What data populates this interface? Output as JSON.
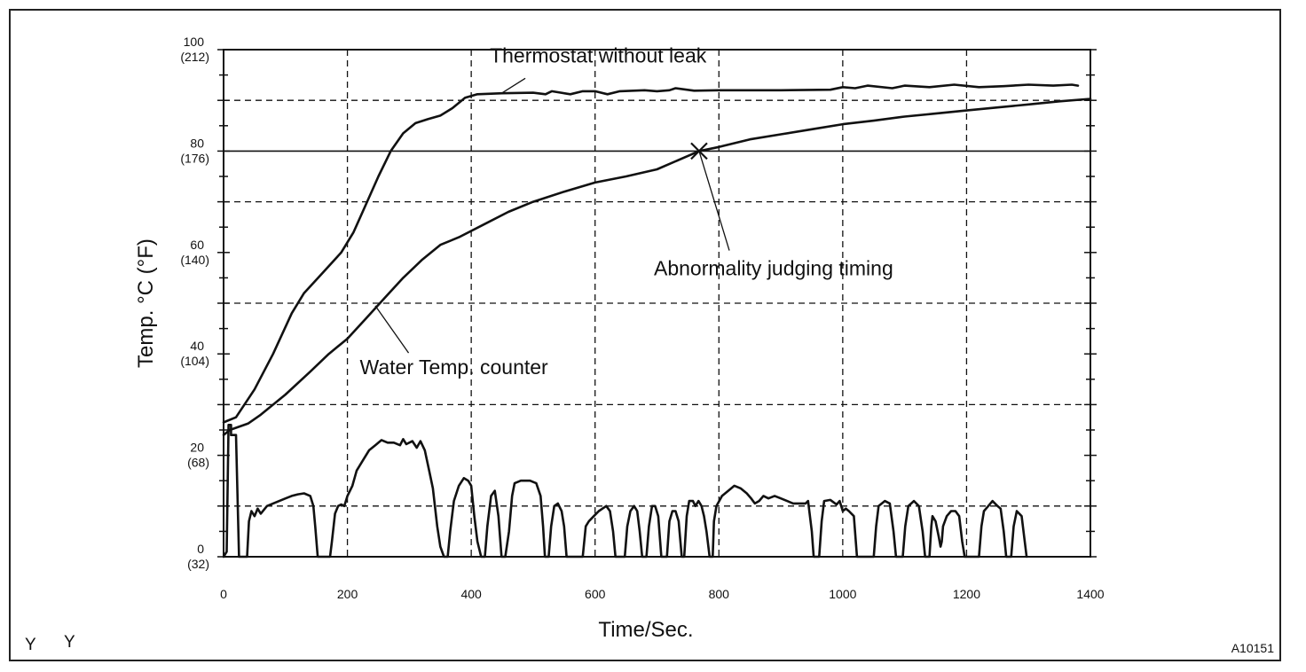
{
  "figure_id": "A10151",
  "corner_marks": [
    "Y",
    "Y"
  ],
  "colors": {
    "ink": "#111111",
    "background": "#ffffff"
  },
  "chart_data": {
    "type": "line",
    "title": "",
    "xlabel": "Time/Sec.",
    "ylabel": "Temp. °C (°F)",
    "xlim": [
      0,
      1400
    ],
    "ylim": [
      0,
      100
    ],
    "x_ticks": [
      0,
      200,
      400,
      600,
      800,
      1000,
      1200,
      1400
    ],
    "x_tick_labels": [
      "0",
      "200",
      "400",
      "600",
      "800",
      "1000",
      "1200",
      "1400"
    ],
    "y_ticks": [
      0,
      20,
      40,
      60,
      80,
      100
    ],
    "y_tick_labels": [
      {
        "c": "0",
        "f": "(32)"
      },
      {
        "c": "20",
        "f": "(68)"
      },
      {
        "c": "40",
        "f": "(104)"
      },
      {
        "c": "60",
        "f": "(140)"
      },
      {
        "c": "80",
        "f": "(176)"
      },
      {
        "c": "100",
        "f": "(212)"
      }
    ],
    "grid": "dashed",
    "reference_lines": [
      {
        "axis": "y",
        "value": 80,
        "style": "solid"
      }
    ],
    "series": [
      {
        "name": "Thermostat without leak",
        "points": [
          [
            0,
            26.5
          ],
          [
            20,
            27.5
          ],
          [
            50,
            33
          ],
          [
            80,
            40
          ],
          [
            110,
            48
          ],
          [
            130,
            52
          ],
          [
            160,
            56
          ],
          [
            190,
            60
          ],
          [
            210,
            64
          ],
          [
            230,
            69.5
          ],
          [
            250,
            75
          ],
          [
            270,
            80
          ],
          [
            290,
            83.5
          ],
          [
            310,
            85.5
          ],
          [
            330,
            86.3
          ],
          [
            350,
            87
          ],
          [
            370,
            88.5
          ],
          [
            390,
            90.5
          ],
          [
            410,
            91.2
          ],
          [
            450,
            91.4
          ],
          [
            500,
            91.5
          ],
          [
            520,
            91.2
          ],
          [
            530,
            91.8
          ],
          [
            560,
            91.2
          ],
          [
            580,
            91.8
          ],
          [
            600,
            91.8
          ],
          [
            620,
            91.2
          ],
          [
            640,
            91.8
          ],
          [
            680,
            92
          ],
          [
            700,
            91.8
          ],
          [
            720,
            92
          ],
          [
            730,
            92.4
          ],
          [
            760,
            91.9
          ],
          [
            800,
            92
          ],
          [
            900,
            92
          ],
          [
            980,
            92.1
          ],
          [
            1000,
            92.6
          ],
          [
            1020,
            92.4
          ],
          [
            1040,
            92.9
          ],
          [
            1080,
            92.4
          ],
          [
            1100,
            92.9
          ],
          [
            1140,
            92.6
          ],
          [
            1180,
            93.1
          ],
          [
            1220,
            92.6
          ],
          [
            1260,
            92.8
          ],
          [
            1300,
            93.1
          ],
          [
            1340,
            92.9
          ],
          [
            1370,
            93.1
          ],
          [
            1380,
            92.9
          ]
        ]
      },
      {
        "name": "Water Temp. counter",
        "points": [
          [
            0,
            24
          ],
          [
            10,
            25
          ],
          [
            40,
            26.3
          ],
          [
            60,
            28
          ],
          [
            100,
            32
          ],
          [
            140,
            36.5
          ],
          [
            170,
            40
          ],
          [
            200,
            43
          ],
          [
            230,
            47
          ],
          [
            260,
            51
          ],
          [
            290,
            55
          ],
          [
            320,
            58.5
          ],
          [
            350,
            61.5
          ],
          [
            380,
            63
          ],
          [
            420,
            65.5
          ],
          [
            460,
            68
          ],
          [
            500,
            70
          ],
          [
            550,
            72
          ],
          [
            600,
            73.8
          ],
          [
            650,
            75
          ],
          [
            700,
            76.4
          ],
          [
            768,
            80
          ],
          [
            800,
            80.8
          ],
          [
            850,
            82.3
          ],
          [
            900,
            83.3
          ],
          [
            950,
            84.3
          ],
          [
            1000,
            85.3
          ],
          [
            1050,
            86
          ],
          [
            1100,
            86.8
          ],
          [
            1150,
            87.4
          ],
          [
            1200,
            88
          ],
          [
            1250,
            88.6
          ],
          [
            1300,
            89.2
          ],
          [
            1350,
            89.8
          ],
          [
            1400,
            90.3
          ]
        ]
      },
      {
        "name": "",
        "points": [
          [
            0,
            0
          ],
          [
            5,
            1
          ],
          [
            8,
            26
          ],
          [
            12,
            26
          ],
          [
            12,
            24
          ],
          [
            20,
            24
          ],
          [
            25,
            0
          ],
          [
            38,
            0
          ],
          [
            41,
            7
          ],
          [
            45,
            9
          ],
          [
            50,
            8
          ],
          [
            55,
            9.5
          ],
          [
            60,
            8.5
          ],
          [
            70,
            10
          ],
          [
            80,
            10.5
          ],
          [
            100,
            11.5
          ],
          [
            110,
            12
          ],
          [
            120,
            12.3
          ],
          [
            130,
            12.5
          ],
          [
            140,
            12
          ],
          [
            145,
            10
          ],
          [
            148,
            6
          ],
          [
            152,
            0
          ],
          [
            160,
            0
          ],
          [
            172,
            0
          ],
          [
            175,
            3
          ],
          [
            180,
            8.5
          ],
          [
            185,
            10
          ],
          [
            190,
            10.3
          ],
          [
            195,
            10
          ],
          [
            200,
            12
          ],
          [
            208,
            14
          ],
          [
            215,
            17
          ],
          [
            225,
            19
          ],
          [
            235,
            21
          ],
          [
            245,
            22
          ],
          [
            255,
            23
          ],
          [
            265,
            22.5
          ],
          [
            275,
            22.5
          ],
          [
            285,
            22
          ],
          [
            290,
            23.2
          ],
          [
            295,
            22.2
          ],
          [
            305,
            22.8
          ],
          [
            312,
            21.5
          ],
          [
            318,
            22.8
          ],
          [
            325,
            21
          ],
          [
            332,
            17
          ],
          [
            338,
            13.5
          ],
          [
            345,
            6
          ],
          [
            350,
            2
          ],
          [
            356,
            0
          ],
          [
            362,
            0
          ],
          [
            366,
            5
          ],
          [
            372,
            11
          ],
          [
            380,
            14
          ],
          [
            388,
            15.5
          ],
          [
            395,
            15
          ],
          [
            400,
            14
          ],
          [
            405,
            8
          ],
          [
            410,
            3
          ],
          [
            416,
            0
          ],
          [
            422,
            0
          ],
          [
            426,
            6
          ],
          [
            432,
            12
          ],
          [
            438,
            13
          ],
          [
            444,
            8
          ],
          [
            449,
            0
          ],
          [
            455,
            0
          ],
          [
            461,
            5
          ],
          [
            466,
            12
          ],
          [
            470,
            14.5
          ],
          [
            480,
            15
          ],
          [
            495,
            15
          ],
          [
            505,
            14.5
          ],
          [
            512,
            12
          ],
          [
            516,
            6
          ],
          [
            519,
            0
          ],
          [
            525,
            0
          ],
          [
            529,
            6
          ],
          [
            534,
            10
          ],
          [
            540,
            10.5
          ],
          [
            546,
            9
          ],
          [
            550,
            6
          ],
          [
            554,
            0
          ],
          [
            580,
            0
          ],
          [
            585,
            6
          ],
          [
            590,
            7
          ],
          [
            598,
            8
          ],
          [
            606,
            9
          ],
          [
            612,
            9.5
          ],
          [
            618,
            10
          ],
          [
            624,
            9
          ],
          [
            629,
            5
          ],
          [
            633,
            0
          ],
          [
            648,
            0
          ],
          [
            652,
            6
          ],
          [
            657,
            9
          ],
          [
            663,
            10
          ],
          [
            668,
            9
          ],
          [
            672,
            5
          ],
          [
            676,
            0
          ],
          [
            683,
            0
          ],
          [
            687,
            6
          ],
          [
            692,
            10
          ],
          [
            697,
            10
          ],
          [
            702,
            8
          ],
          [
            707,
            0
          ],
          [
            716,
            0
          ],
          [
            720,
            7
          ],
          [
            725,
            9
          ],
          [
            730,
            9
          ],
          [
            735,
            7
          ],
          [
            740,
            0
          ],
          [
            744,
            0
          ],
          [
            748,
            8
          ],
          [
            752,
            11
          ],
          [
            758,
            11
          ],
          [
            762,
            10
          ],
          [
            767,
            11
          ],
          [
            772,
            10
          ],
          [
            776,
            8
          ],
          [
            780,
            5
          ],
          [
            785,
            0
          ],
          [
            790,
            0
          ],
          [
            792,
            7
          ],
          [
            796,
            10
          ],
          [
            805,
            12
          ],
          [
            815,
            13
          ],
          [
            825,
            14
          ],
          [
            835,
            13.5
          ],
          [
            845,
            12.5
          ],
          [
            852,
            11.5
          ],
          [
            858,
            10.5
          ],
          [
            865,
            11
          ],
          [
            872,
            12
          ],
          [
            880,
            11.5
          ],
          [
            890,
            12
          ],
          [
            900,
            11.5
          ],
          [
            910,
            11
          ],
          [
            920,
            10.5
          ],
          [
            940,
            10.5
          ],
          [
            944,
            11
          ],
          [
            950,
            5
          ],
          [
            953,
            0
          ],
          [
            962,
            0
          ],
          [
            966,
            7
          ],
          [
            970,
            11
          ],
          [
            980,
            11.2
          ],
          [
            990,
            10.3
          ],
          [
            995,
            11
          ],
          [
            1000,
            9
          ],
          [
            1005,
            9.5
          ],
          [
            1010,
            9
          ],
          [
            1018,
            8
          ],
          [
            1023,
            0
          ],
          [
            1050,
            0
          ],
          [
            1054,
            6
          ],
          [
            1058,
            10
          ],
          [
            1068,
            11
          ],
          [
            1076,
            10.5
          ],
          [
            1082,
            5
          ],
          [
            1086,
            0
          ],
          [
            1097,
            0
          ],
          [
            1101,
            6
          ],
          [
            1106,
            10
          ],
          [
            1115,
            11
          ],
          [
            1123,
            10
          ],
          [
            1129,
            5
          ],
          [
            1133,
            0
          ],
          [
            1140,
            0
          ],
          [
            1143,
            6
          ],
          [
            1145,
            8
          ],
          [
            1150,
            7
          ],
          [
            1155,
            4
          ],
          [
            1158,
            2
          ],
          [
            1160,
            3
          ],
          [
            1162,
            6
          ],
          [
            1168,
            8
          ],
          [
            1175,
            9
          ],
          [
            1182,
            9
          ],
          [
            1188,
            8
          ],
          [
            1193,
            3
          ],
          [
            1197,
            0
          ],
          [
            1220,
            0
          ],
          [
            1224,
            6
          ],
          [
            1228,
            9
          ],
          [
            1235,
            10
          ],
          [
            1242,
            11
          ],
          [
            1250,
            10
          ],
          [
            1255,
            9.5
          ],
          [
            1260,
            5
          ],
          [
            1264,
            0
          ],
          [
            1272,
            0
          ],
          [
            1276,
            6
          ],
          [
            1281,
            9
          ],
          [
            1289,
            8
          ],
          [
            1293,
            4
          ],
          [
            1297,
            0
          ]
        ]
      }
    ],
    "annotations": [
      {
        "text": "Thermostat without leak",
        "target": [
          449,
          91.4
        ],
        "label_pos": [
          430,
          97.5
        ],
        "anchor": "start"
      },
      {
        "text": "Abnormality judging timing",
        "target": [
          768,
          80
        ],
        "label_pos": [
          695,
          55.5
        ],
        "anchor": "start",
        "marker": "x"
      },
      {
        "text": "Water Temp. counter",
        "target": [
          245,
          49.5
        ],
        "label_pos": [
          220,
          36
        ],
        "anchor": "start"
      }
    ]
  }
}
